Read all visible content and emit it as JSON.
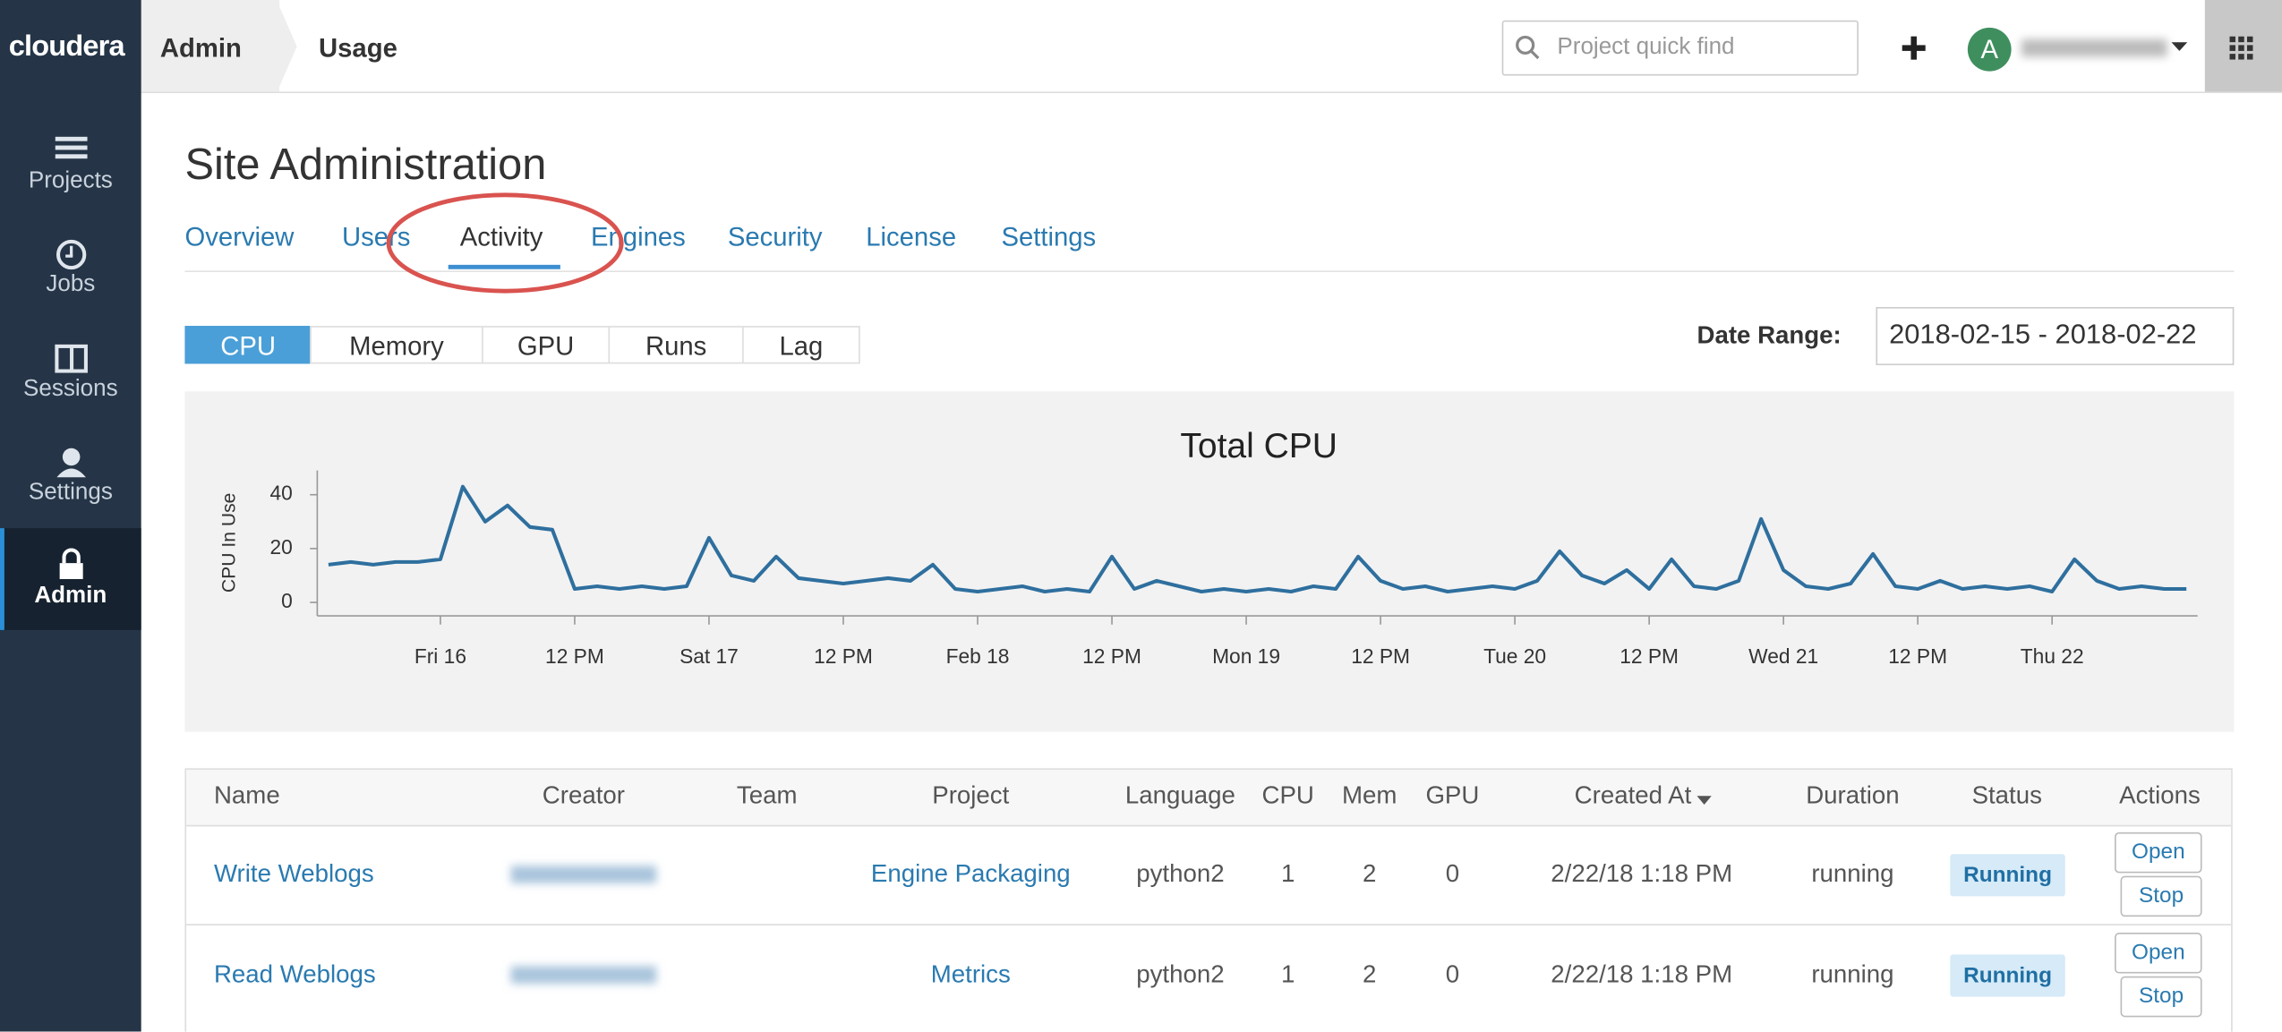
{
  "brand": "cloudera",
  "breadcrumb": [
    "Admin",
    "Usage"
  ],
  "search_placeholder": "Project quick find",
  "user_initial": "A",
  "sidebar": [
    "Projects",
    "Jobs",
    "Sessions",
    "Settings",
    "Admin"
  ],
  "page_title": "Site Administration",
  "tabs": [
    "Overview",
    "Users",
    "Activity",
    "Engines",
    "Security",
    "License",
    "Settings"
  ],
  "subtabs": [
    "CPU",
    "Memory",
    "GPU",
    "Runs",
    "Lag"
  ],
  "date_range_label": "Date Range:",
  "date_range": "2018-02-15 - 2018-02-22",
  "chart_data": {
    "type": "line",
    "title": "Total CPU",
    "y_label": "CPU In Use",
    "x": [
      -10,
      -8,
      -6,
      -4,
      -2,
      0,
      2,
      4,
      6,
      8,
      10,
      12,
      14,
      16,
      18,
      20,
      22,
      24,
      26,
      28,
      30,
      32,
      34,
      36,
      38,
      40,
      42,
      44,
      46,
      48,
      50,
      52,
      54,
      56,
      58,
      60,
      62,
      64,
      66,
      68,
      70,
      72,
      74,
      76,
      78,
      80,
      82,
      84,
      86,
      88,
      90,
      92,
      94,
      96,
      98,
      100,
      102,
      104,
      106,
      108,
      110,
      112,
      114,
      116,
      118,
      120,
      122,
      124,
      126,
      128,
      130,
      132,
      134,
      136,
      138,
      140,
      142,
      144,
      146,
      148,
      150,
      152,
      154,
      156
    ],
    "series": [
      {
        "color": "#2e6f9e",
        "values": [
          14,
          15,
          14,
          15,
          15,
          16,
          43,
          30,
          36,
          28,
          27,
          5,
          6,
          5,
          6,
          5,
          6,
          24,
          10,
          8,
          17,
          9,
          8,
          7,
          8,
          9,
          8,
          14,
          5,
          4,
          5,
          6,
          4,
          5,
          4,
          17,
          5,
          8,
          6,
          4,
          5,
          4,
          5,
          4,
          6,
          5,
          17,
          8,
          5,
          6,
          4,
          5,
          6,
          5,
          8,
          19,
          10,
          7,
          12,
          5,
          16,
          6,
          5,
          8,
          31,
          12,
          6,
          5,
          7,
          18,
          6,
          5,
          8,
          5,
          6,
          5,
          6,
          4,
          16,
          8,
          5,
          6,
          5,
          5
        ]
      }
    ],
    "xlim": [
      -11,
      157
    ],
    "ylim": [
      -5,
      49
    ],
    "xticks": [
      {
        "value": 0,
        "label": "Fri 16"
      },
      {
        "value": 12,
        "label": "12 PM"
      },
      {
        "value": 24,
        "label": "Sat 17"
      },
      {
        "value": 36,
        "label": "12 PM"
      },
      {
        "value": 48,
        "label": "Feb 18"
      },
      {
        "value": 60,
        "label": "12 PM"
      },
      {
        "value": 72,
        "label": "Mon 19"
      },
      {
        "value": 84,
        "label": "12 PM"
      },
      {
        "value": 96,
        "label": "Tue 20"
      },
      {
        "value": 108,
        "label": "12 PM"
      },
      {
        "value": 120,
        "label": "Wed 21"
      },
      {
        "value": 132,
        "label": "12 PM"
      },
      {
        "value": 144,
        "label": "Thu 22"
      }
    ],
    "yticks": [
      0,
      20,
      40
    ]
  },
  "table": {
    "headers": [
      "Name",
      "Creator",
      "Team",
      "Project",
      "Language",
      "CPU",
      "Mem",
      "GPU",
      "Created At",
      "Duration",
      "Status",
      "Actions"
    ],
    "rows": [
      {
        "name": "Write Weblogs",
        "project": "Engine Packaging",
        "language": "python2",
        "cpu": 1,
        "mem": 2,
        "gpu": 0,
        "created_at": "2/22/18 1:18 PM",
        "duration": "running",
        "status": "Running",
        "actions": [
          "Open",
          "Stop"
        ]
      },
      {
        "name": "Read Weblogs",
        "project": "Metrics",
        "language": "python2",
        "cpu": 1,
        "mem": 2,
        "gpu": 0,
        "created_at": "2/22/18 1:18 PM",
        "duration": "running",
        "status": "Running",
        "actions": [
          "Open",
          "Stop"
        ]
      }
    ]
  }
}
